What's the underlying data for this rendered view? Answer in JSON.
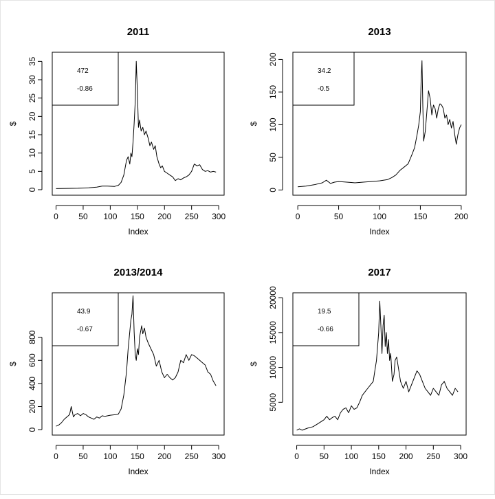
{
  "chart_data": [
    {
      "type": "line",
      "title": "2011",
      "xlabel": "Index",
      "ylabel": "$",
      "xlim": [
        0,
        300
      ],
      "ylim": [
        0,
        35
      ],
      "x_ticks": [
        "0",
        "50",
        "100",
        "150",
        "200",
        "250",
        "300"
      ],
      "y_ticks": [
        "0",
        "5",
        "10",
        "15",
        "20",
        "25",
        "30",
        "35"
      ],
      "inset": [
        "472",
        "-0.86"
      ],
      "series": [
        {
          "x": [
            0,
            20,
            40,
            60,
            75,
            85,
            95,
            108,
            115,
            120,
            125,
            130,
            133,
            136,
            138,
            140,
            142,
            144,
            146,
            148,
            150,
            152,
            154,
            157,
            160,
            163,
            166,
            170,
            173,
            176,
            180,
            183,
            186,
            190,
            193,
            196,
            200,
            205,
            210,
            215,
            220,
            225,
            230,
            235,
            240,
            245,
            250,
            255,
            260,
            265,
            270,
            275,
            280,
            285,
            290,
            295
          ],
          "y": [
            0.3,
            0.35,
            0.4,
            0.5,
            0.7,
            1.0,
            1.0,
            0.9,
            1.2,
            2,
            4,
            8,
            9,
            7,
            10,
            9,
            13,
            18,
            24,
            35,
            27,
            17,
            19,
            16,
            17,
            15,
            16,
            14,
            12,
            13,
            11,
            12,
            9,
            7,
            6,
            6.5,
            5,
            4.5,
            4,
            3.5,
            2.5,
            3,
            2.7,
            3.2,
            3.5,
            4,
            5,
            7,
            6.5,
            6.8,
            5.5,
            5,
            5.2,
            4.8,
            5,
            4.8
          ]
        }
      ]
    },
    {
      "type": "line",
      "title": "2013",
      "xlabel": "Index",
      "ylabel": "$",
      "xlim": [
        0,
        200
      ],
      "ylim": [
        0,
        200
      ],
      "x_ticks": [
        "0",
        "50",
        "100",
        "150",
        "200"
      ],
      "y_ticks": [
        "0",
        "50",
        "100",
        "150",
        "200"
      ],
      "inset": [
        "34.2",
        "-0.5"
      ],
      "series": [
        {
          "x": [
            0,
            10,
            20,
            30,
            35,
            40,
            45,
            50,
            60,
            70,
            80,
            90,
            100,
            110,
            115,
            120,
            125,
            130,
            135,
            140,
            143,
            146,
            148,
            150,
            151,
            152,
            153,
            154,
            156,
            158,
            160,
            162,
            164,
            166,
            168,
            170,
            172,
            174,
            176,
            178,
            180,
            182,
            184,
            186,
            188,
            190,
            192,
            194,
            196,
            198,
            200
          ],
          "y": [
            5,
            6,
            8,
            11,
            15,
            10,
            12,
            13,
            12,
            11,
            12,
            13,
            14,
            16,
            19,
            23,
            30,
            35,
            40,
            55,
            65,
            85,
            100,
            120,
            170,
            198,
            130,
            75,
            90,
            120,
            152,
            140,
            115,
            130,
            125,
            110,
            125,
            132,
            130,
            125,
            110,
            115,
            100,
            108,
            95,
            105,
            85,
            70,
            85,
            95,
            100
          ]
        }
      ]
    },
    {
      "type": "line",
      "title": "2013/2014",
      "xlabel": "Index",
      "ylabel": "$",
      "xlim": [
        0,
        300
      ],
      "ylim": [
        0,
        1150
      ],
      "x_ticks": [
        "0",
        "50",
        "100",
        "150",
        "200",
        "250",
        "300"
      ],
      "y_ticks": [
        "0",
        "200",
        "400",
        "600",
        "800"
      ],
      "inset": [
        "43.9",
        "-0.67"
      ],
      "series": [
        {
          "x": [
            0,
            5,
            10,
            15,
            20,
            25,
            28,
            32,
            35,
            40,
            45,
            50,
            55,
            60,
            65,
            70,
            75,
            80,
            85,
            90,
            100,
            110,
            115,
            120,
            125,
            130,
            133,
            136,
            138,
            140,
            142,
            144,
            146,
            148,
            150,
            152,
            154,
            156,
            158,
            160,
            163,
            166,
            170,
            175,
            180,
            185,
            190,
            195,
            200,
            205,
            210,
            215,
            220,
            225,
            230,
            235,
            240,
            245,
            250,
            255,
            260,
            265,
            270,
            275,
            280,
            285,
            290,
            295
          ],
          "y": [
            30,
            40,
            60,
            90,
            110,
            130,
            200,
            110,
            130,
            140,
            120,
            140,
            130,
            110,
            100,
            90,
            110,
            100,
            120,
            115,
            125,
            130,
            135,
            180,
            300,
            500,
            700,
            850,
            950,
            1000,
            1160,
            850,
            650,
            600,
            700,
            650,
            800,
            850,
            900,
            830,
            880,
            800,
            750,
            700,
            650,
            550,
            600,
            500,
            450,
            480,
            450,
            430,
            450,
            500,
            600,
            580,
            650,
            600,
            650,
            640,
            620,
            600,
            580,
            560,
            500,
            480,
            420,
            380
          ]
        }
      ]
    },
    {
      "type": "line",
      "title": "2017",
      "xlabel": "Index",
      "ylabel": "$",
      "xlim": [
        0,
        300
      ],
      "ylim": [
        0,
        20000
      ],
      "x_ticks": [
        "0",
        "50",
        "100",
        "150",
        "200",
        "250",
        "300"
      ],
      "y_ticks": [
        "5000",
        "10000",
        "15000",
        "20000"
      ],
      "inset": [
        "19.5",
        "-0.66"
      ],
      "series": [
        {
          "x": [
            0,
            5,
            10,
            20,
            30,
            40,
            50,
            55,
            60,
            65,
            70,
            75,
            80,
            85,
            90,
            95,
            100,
            105,
            110,
            115,
            120,
            125,
            130,
            135,
            140,
            143,
            146,
            148,
            150,
            152,
            154,
            156,
            158,
            160,
            162,
            164,
            166,
            168,
            170,
            172,
            175,
            178,
            180,
            183,
            186,
            190,
            195,
            200,
            205,
            210,
            215,
            220,
            225,
            230,
            235,
            240,
            245,
            250,
            255,
            260,
            265,
            270,
            275,
            280,
            285,
            290,
            295
          ],
          "y": [
            1000,
            1200,
            1000,
            1300,
            1500,
            2000,
            2500,
            3000,
            2500,
            2800,
            3000,
            2500,
            3500,
            4000,
            4200,
            3500,
            4500,
            4000,
            4200,
            5000,
            6000,
            6500,
            7000,
            7500,
            8000,
            9500,
            11000,
            13000,
            15000,
            19500,
            16000,
            12000,
            16000,
            17500,
            13000,
            15000,
            12000,
            14000,
            11000,
            12000,
            8000,
            9000,
            11000,
            11500,
            10000,
            8000,
            7000,
            8000,
            6500,
            7500,
            8500,
            9500,
            9000,
            8000,
            7000,
            6500,
            6000,
            7000,
            6500,
            6000,
            7500,
            8000,
            7000,
            6500,
            6000,
            7000,
            6500
          ]
        }
      ]
    }
  ]
}
